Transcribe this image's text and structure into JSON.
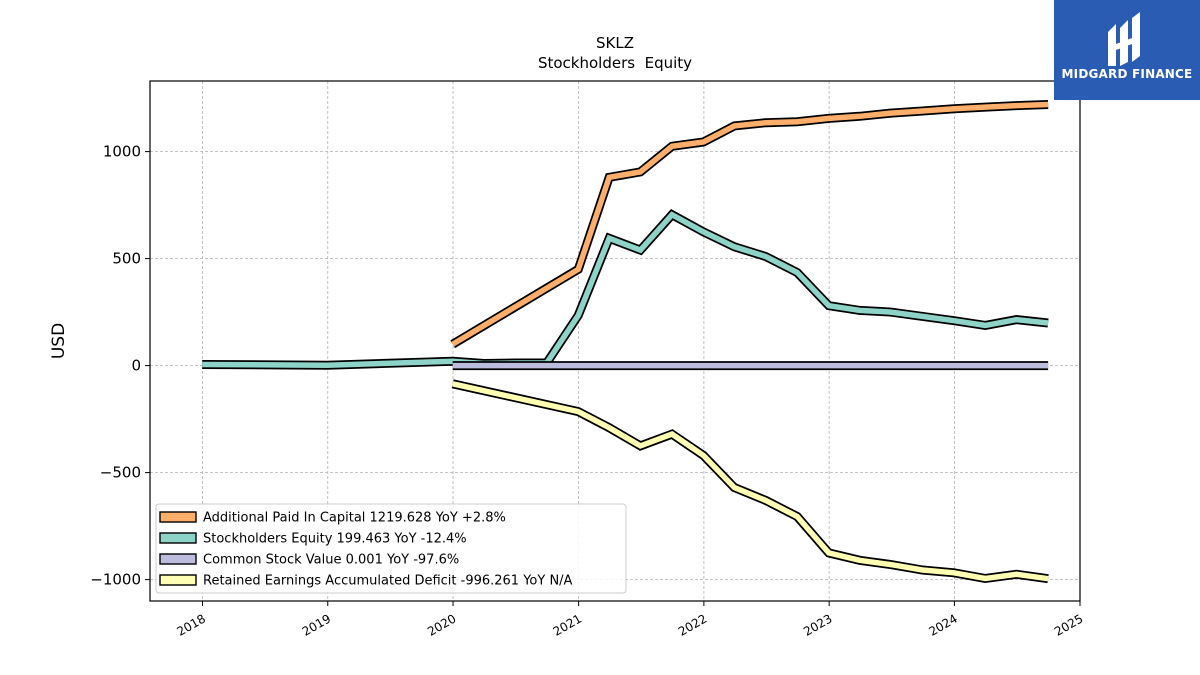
{
  "brand": {
    "name": "MIDGARD FINANCE",
    "color": "#2a5cb3"
  },
  "chart_data": {
    "type": "line",
    "title": "SKLZ",
    "subtitle": "Stockholders  Equity",
    "ylabel": "USD",
    "xlabel": "",
    "xlim": [
      "2017-08-01",
      "2025-01-01"
    ],
    "ylim": [
      -1100,
      1330
    ],
    "x_ticks": [
      "2018",
      "2019",
      "2020",
      "2021",
      "2022",
      "2023",
      "2024",
      "2025"
    ],
    "y_ticks": [
      -1000,
      -500,
      0,
      500,
      1000
    ],
    "y_tick_labels": [
      "−1000",
      "−500",
      "0",
      "500",
      "1000"
    ],
    "grid": true,
    "legend_position": "lower-left",
    "series": [
      {
        "name": "Additional Paid In Capital  1219.628 YoY +2.8%",
        "color": "#fdae6b",
        "points": [
          [
            "2019-12-31",
            100
          ],
          [
            "2020-12-31",
            450
          ],
          [
            "2021-03-31",
            880
          ],
          [
            "2021-06-30",
            905
          ],
          [
            "2021-09-30",
            1025
          ],
          [
            "2021-12-31",
            1045
          ],
          [
            "2022-03-31",
            1120
          ],
          [
            "2022-06-30",
            1135
          ],
          [
            "2022-09-30",
            1140
          ],
          [
            "2022-12-31",
            1155
          ],
          [
            "2023-03-31",
            1165
          ],
          [
            "2023-06-30",
            1180
          ],
          [
            "2023-09-30",
            1190
          ],
          [
            "2023-12-31",
            1200
          ],
          [
            "2024-03-31",
            1208
          ],
          [
            "2024-06-30",
            1215
          ],
          [
            "2024-09-30",
            1220
          ]
        ]
      },
      {
        "name": "Stockholders Equity  199.463 YoY -12.4%",
        "color": "#8dd3c7",
        "points": [
          [
            "2017-12-31",
            5
          ],
          [
            "2018-12-31",
            2
          ],
          [
            "2019-12-31",
            20
          ],
          [
            "2020-03-31",
            10
          ],
          [
            "2020-06-30",
            12
          ],
          [
            "2020-09-30",
            12
          ],
          [
            "2020-12-31",
            235
          ],
          [
            "2021-03-31",
            595
          ],
          [
            "2021-06-30",
            540
          ],
          [
            "2021-09-30",
            705
          ],
          [
            "2021-12-31",
            625
          ],
          [
            "2022-03-31",
            555
          ],
          [
            "2022-06-30",
            510
          ],
          [
            "2022-09-30",
            435
          ],
          [
            "2022-12-31",
            280
          ],
          [
            "2023-03-31",
            258
          ],
          [
            "2023-06-30",
            250
          ],
          [
            "2023-09-30",
            230
          ],
          [
            "2023-12-31",
            210
          ],
          [
            "2024-03-31",
            188
          ],
          [
            "2024-06-30",
            215
          ],
          [
            "2024-09-30",
            199
          ]
        ]
      },
      {
        "name": "Common Stock Value  0.001 YoY -97.6%",
        "color": "#bcbddc",
        "points": [
          [
            "2019-12-31",
            0
          ],
          [
            "2024-09-30",
            0
          ]
        ]
      },
      {
        "name": "Retained Earnings Accumulated Deficit  -996.261 YoY N/A",
        "color": "#ffffb3",
        "points": [
          [
            "2019-12-31",
            -85
          ],
          [
            "2020-12-31",
            -215
          ],
          [
            "2021-03-31",
            -290
          ],
          [
            "2021-06-30",
            -375
          ],
          [
            "2021-09-30",
            -320
          ],
          [
            "2021-12-31",
            -420
          ],
          [
            "2022-03-31",
            -570
          ],
          [
            "2022-06-30",
            -630
          ],
          [
            "2022-09-30",
            -705
          ],
          [
            "2022-12-31",
            -875
          ],
          [
            "2023-03-31",
            -910
          ],
          [
            "2023-06-30",
            -930
          ],
          [
            "2023-09-30",
            -955
          ],
          [
            "2023-12-31",
            -968
          ],
          [
            "2024-03-31",
            -995
          ],
          [
            "2024-06-30",
            -975
          ],
          [
            "2024-09-30",
            -996
          ]
        ]
      }
    ]
  }
}
